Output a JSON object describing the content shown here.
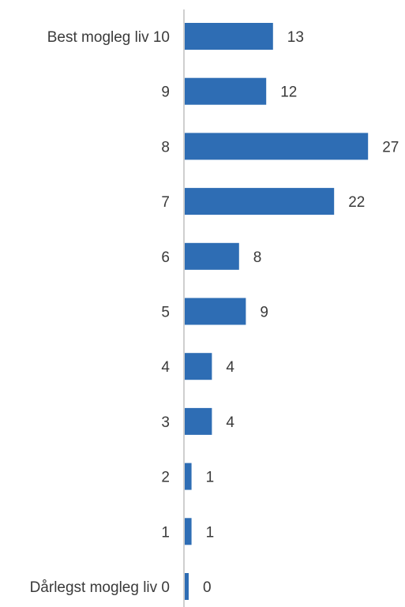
{
  "chart_data": {
    "type": "bar",
    "orientation": "horizontal",
    "categories": [
      "Best mogleg liv 10",
      "9",
      "8",
      "7",
      "6",
      "5",
      "4",
      "3",
      "2",
      "1",
      "Dårlegst mogleg liv 0"
    ],
    "values": [
      13,
      12,
      27,
      22,
      8,
      9,
      4,
      4,
      1,
      1,
      0
    ],
    "title": "",
    "xlabel": "",
    "ylabel": "",
    "grid": false,
    "legend": "none",
    "data_labels": true,
    "colors": {
      "bar": "#2E6DB4",
      "axis": "#BFBFBF",
      "text": "#3A3A3A"
    }
  }
}
